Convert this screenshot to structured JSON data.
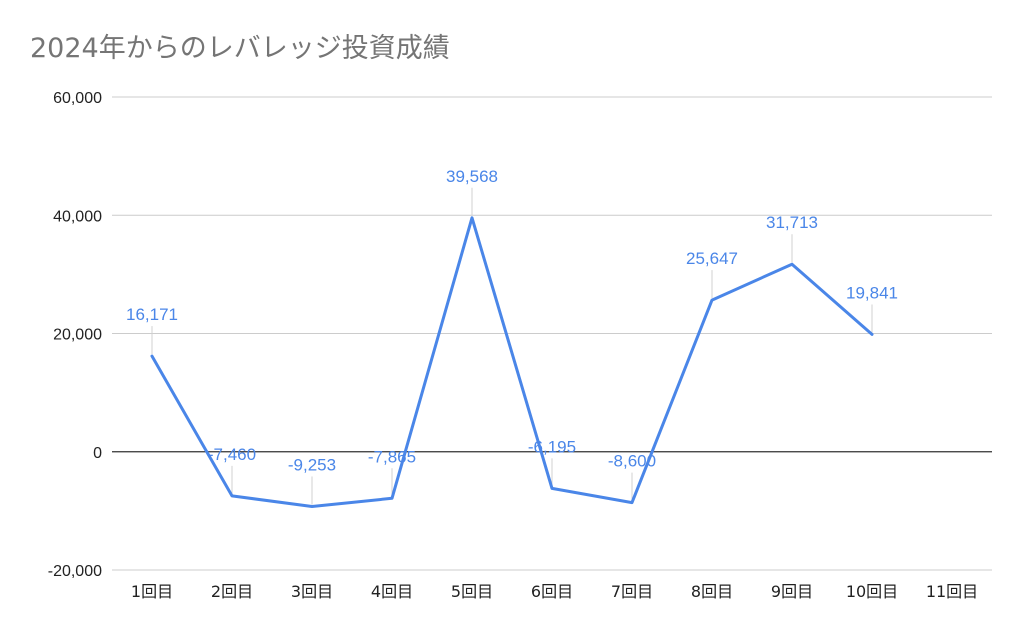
{
  "chart_data": {
    "type": "line",
    "title": "2024年からのレバレッジ投資成績",
    "xlabel": "",
    "ylabel": "",
    "categories": [
      "1回目",
      "2回目",
      "3回目",
      "4回目",
      "5回目",
      "6回目",
      "7回目",
      "8回目",
      "9回目",
      "10回目",
      "11回目"
    ],
    "series": [
      {
        "values": [
          16171,
          -7460,
          -9253,
          -7865,
          39568,
          -6195,
          -8600,
          25647,
          31713,
          19841,
          null
        ],
        "value_labels": [
          "16,171",
          "-7,460",
          "-9,253",
          "-7,865",
          "39,568",
          "-6,195",
          "-8,600",
          "25,647",
          "31,713",
          "19,841",
          ""
        ]
      }
    ],
    "ylim": [
      -20000,
      60000
    ],
    "yticks": [
      -20000,
      0,
      20000,
      40000,
      60000
    ],
    "ytick_labels": [
      "-20,000",
      "0",
      "20,000",
      "40,000",
      "60,000"
    ],
    "grid": true,
    "legend": "none",
    "colors": {
      "line": "#4a86e8",
      "label": "#4a86e8",
      "grid": "#cccccc",
      "zero_line": "#333333",
      "title": "#757575"
    }
  }
}
